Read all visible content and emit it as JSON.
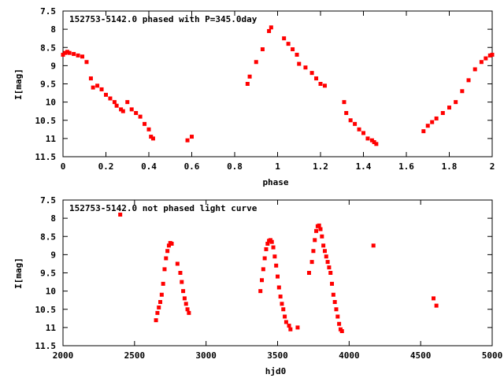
{
  "chart_data": [
    {
      "type": "scatter",
      "title": "152753-5142.0 phased with P=345.0day",
      "xlabel": "phase",
      "ylabel": "I[mag]",
      "xlim": [
        0,
        2
      ],
      "ylim": [
        7.5,
        11.5
      ],
      "y_inverted": true,
      "xticks": [
        0,
        0.2,
        0.4,
        0.6,
        0.8,
        1,
        1.2,
        1.4,
        1.6,
        1.8,
        2
      ],
      "xtick_labels": [
        "0",
        "0.2",
        "0.4",
        "0.6",
        "0.8",
        "1",
        "1.2",
        "1.4",
        "1.6",
        "1.8",
        "2"
      ],
      "yticks": [
        7.5,
        8,
        8.5,
        9,
        9.5,
        10,
        10.5,
        11,
        11.5
      ],
      "ytick_labels": [
        "7.5",
        "8",
        "8.5",
        "9",
        "9.5",
        "10",
        "10.5",
        "11",
        "11.5"
      ],
      "marker_color": "#ff0000",
      "grid": false,
      "series": [
        {
          "x": [
            0.0,
            0.01,
            0.02,
            0.03,
            0.05,
            0.07,
            0.09,
            0.11,
            0.13,
            0.14,
            0.16,
            0.18,
            0.2,
            0.22,
            0.24,
            0.25,
            0.27,
            0.28,
            0.3,
            0.32,
            0.34,
            0.36,
            0.38,
            0.4,
            0.41,
            0.42,
            0.58,
            0.6,
            0.86,
            0.87,
            0.9,
            0.93,
            0.96,
            0.97,
            1.03,
            1.05,
            1.07,
            1.09,
            1.1,
            1.13,
            1.16,
            1.18,
            1.2,
            1.22,
            1.31,
            1.32,
            1.34,
            1.36,
            1.38,
            1.4,
            1.42,
            1.44,
            1.45,
            1.46,
            1.68,
            1.7,
            1.72,
            1.74,
            1.77,
            1.8,
            1.83,
            1.86,
            1.89,
            1.92,
            1.95,
            1.97,
            1.99,
            2.0
          ],
          "y": [
            8.7,
            8.65,
            8.62,
            8.65,
            8.68,
            8.72,
            8.75,
            8.9,
            9.35,
            9.6,
            9.55,
            9.65,
            9.8,
            9.9,
            10.0,
            10.1,
            10.2,
            10.25,
            10.0,
            10.2,
            10.3,
            10.4,
            10.6,
            10.75,
            10.95,
            11.0,
            11.05,
            10.95,
            9.5,
            9.3,
            8.9,
            8.55,
            8.05,
            7.95,
            8.25,
            8.4,
            8.55,
            8.7,
            8.95,
            9.05,
            9.2,
            9.35,
            9.5,
            9.55,
            10.0,
            10.3,
            10.5,
            10.6,
            10.75,
            10.85,
            11.0,
            11.05,
            11.1,
            11.15,
            10.8,
            10.65,
            10.55,
            10.45,
            10.3,
            10.15,
            10.0,
            9.7,
            9.4,
            9.1,
            8.9,
            8.8,
            8.72,
            8.7
          ]
        }
      ]
    },
    {
      "type": "scatter",
      "title": "152753-5142.0 not phased light curve",
      "xlabel": "hjd0",
      "ylabel": "I[mag]",
      "xlim": [
        2000,
        5000
      ],
      "ylim": [
        7.5,
        11.5
      ],
      "y_inverted": true,
      "xticks": [
        2000,
        2500,
        3000,
        3500,
        4000,
        4500,
        5000
      ],
      "xtick_labels": [
        "2000",
        "2500",
        "3000",
        "3500",
        "4000",
        "4500",
        "5000"
      ],
      "yticks": [
        7.5,
        8,
        8.5,
        9,
        9.5,
        10,
        10.5,
        11,
        11.5
      ],
      "ytick_labels": [
        "7.5",
        "8",
        "8.5",
        "9",
        "9.5",
        "10",
        "10.5",
        "11",
        "11.5"
      ],
      "marker_color": "#ff0000",
      "grid": false,
      "series": [
        {
          "x": [
            2400,
            2650,
            2660,
            2670,
            2680,
            2690,
            2700,
            2710,
            2720,
            2730,
            2740,
            2750,
            2760,
            2800,
            2820,
            2830,
            2840,
            2850,
            2860,
            2870,
            2880,
            3380,
            3390,
            3400,
            3410,
            3420,
            3430,
            3440,
            3450,
            3460,
            3470,
            3480,
            3490,
            3500,
            3510,
            3520,
            3530,
            3540,
            3550,
            3560,
            3580,
            3590,
            3640,
            3720,
            3740,
            3750,
            3760,
            3770,
            3780,
            3790,
            3800,
            3810,
            3820,
            3830,
            3840,
            3850,
            3860,
            3870,
            3880,
            3890,
            3900,
            3910,
            3920,
            3930,
            3940,
            3950,
            4170,
            4590,
            4610
          ],
          "y": [
            7.9,
            10.8,
            10.6,
            10.45,
            10.3,
            10.1,
            9.8,
            9.4,
            9.1,
            8.9,
            8.75,
            8.68,
            8.7,
            9.25,
            9.5,
            9.75,
            10.0,
            10.2,
            10.35,
            10.5,
            10.6,
            10.0,
            9.7,
            9.4,
            9.1,
            8.85,
            8.7,
            8.62,
            8.6,
            8.65,
            8.8,
            9.05,
            9.3,
            9.6,
            9.9,
            10.15,
            10.35,
            10.5,
            10.7,
            10.85,
            10.95,
            11.05,
            11.0,
            9.5,
            9.2,
            8.9,
            8.6,
            8.35,
            8.22,
            8.2,
            8.3,
            8.5,
            8.75,
            8.9,
            9.05,
            9.2,
            9.35,
            9.5,
            9.8,
            10.1,
            10.3,
            10.5,
            10.7,
            10.9,
            11.05,
            11.1,
            8.75,
            10.2,
            10.4
          ]
        }
      ]
    }
  ]
}
